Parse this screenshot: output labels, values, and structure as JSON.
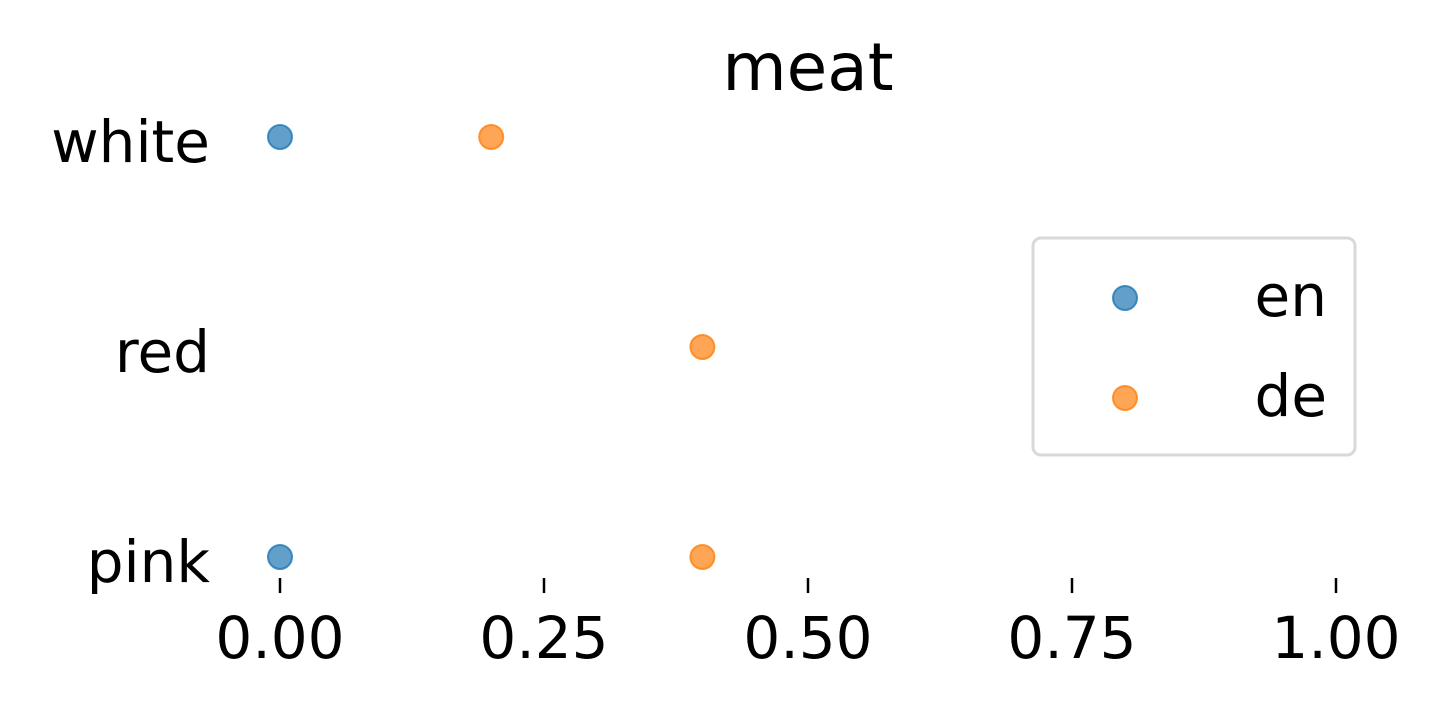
{
  "chart_data": {
    "type": "scatter",
    "title": "meat",
    "xlabel": "",
    "ylabel": "",
    "categories": [
      "white",
      "red",
      "pink"
    ],
    "xlim": [
      0.0,
      1.0
    ],
    "x_ticks": [
      "0.00",
      "0.25",
      "0.50",
      "0.75",
      "1.00"
    ],
    "x_tick_values": [
      0.0,
      0.25,
      0.5,
      0.75,
      1.0
    ],
    "grid": false,
    "legend_position": "right",
    "series": [
      {
        "name": "en",
        "color": "#1f77b4",
        "points": [
          {
            "category": "white",
            "x": 0.0
          },
          {
            "category": "red",
            "x": 1.0
          },
          {
            "category": "pink",
            "x": 0.0
          }
        ]
      },
      {
        "name": "de",
        "color": "#ff7f0e",
        "points": [
          {
            "category": "white",
            "x": 0.2
          },
          {
            "category": "red",
            "x": 0.4
          },
          {
            "category": "pink",
            "x": 0.4
          }
        ]
      }
    ]
  }
}
